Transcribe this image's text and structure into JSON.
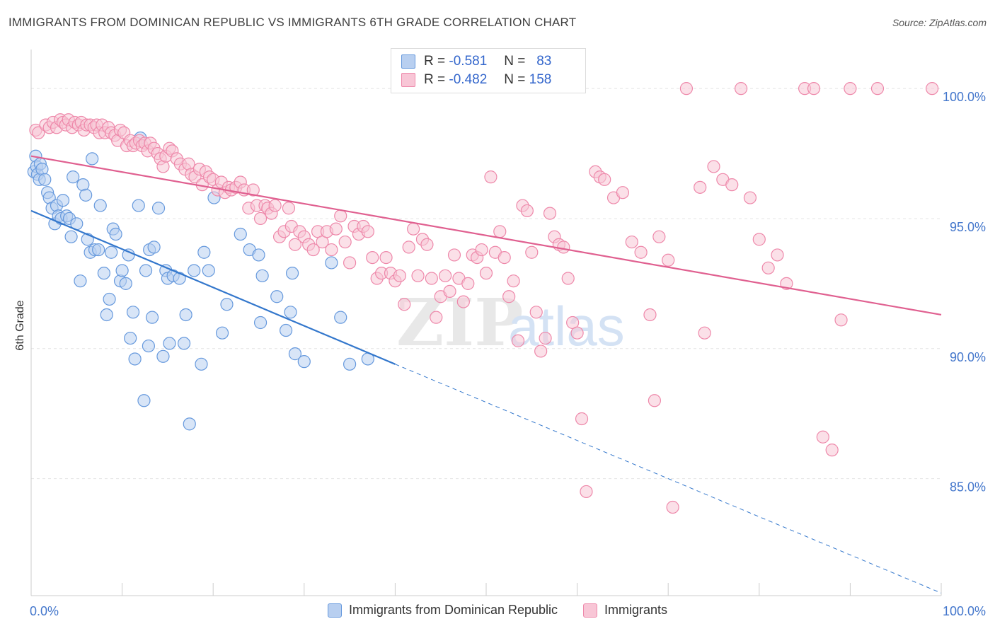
{
  "title": "IMMIGRANTS FROM DOMINICAN REPUBLIC VS IMMIGRANTS 6TH GRADE CORRELATION CHART",
  "source": "Source: ZipAtlas.com",
  "watermark": {
    "zip": "ZIP",
    "atlas": "atlas"
  },
  "legend_top": {
    "rows": [
      {
        "r_label": "R =",
        "r_value": "-0.581",
        "n_label": "N =",
        "n_value": "83"
      },
      {
        "r_label": "R =",
        "r_value": "-0.482",
        "n_label": "N =",
        "n_value": "158"
      }
    ]
  },
  "chart_data": {
    "type": "scatter",
    "ylabel": "6th Grade",
    "x_tick_labels": [
      "0.0%",
      "100.0%"
    ],
    "y_tick_labels": [
      "100.0%",
      "95.0%",
      "90.0%",
      "85.0%"
    ],
    "y_ticks": [
      100,
      95,
      90,
      85
    ],
    "xlim": [
      0,
      100
    ],
    "ylim": [
      80.5,
      101.5
    ],
    "grid": true,
    "legend_position": "bottom",
    "series": [
      {
        "name": "Immigrants from Dominican Republic",
        "color": "#6699dd",
        "fill": "#b8cff0",
        "trend": {
          "x0": 0,
          "y0": 95.3,
          "x1": 40,
          "y1": 89.4,
          "dash_to_x": 100,
          "dash_to_y": 80.6
        },
        "points": [
          [
            0.3,
            96.8
          ],
          [
            0.5,
            97.4
          ],
          [
            0.6,
            97.0
          ],
          [
            0.7,
            96.7
          ],
          [
            0.9,
            96.5
          ],
          [
            1.0,
            97.1
          ],
          [
            1.2,
            96.9
          ],
          [
            1.5,
            96.5
          ],
          [
            1.8,
            96.0
          ],
          [
            2.0,
            95.8
          ],
          [
            2.3,
            95.4
          ],
          [
            2.6,
            94.8
          ],
          [
            2.8,
            95.5
          ],
          [
            3.0,
            95.1
          ],
          [
            3.3,
            95.0
          ],
          [
            3.5,
            95.7
          ],
          [
            3.9,
            95.1
          ],
          [
            4.2,
            95.0
          ],
          [
            4.4,
            94.3
          ],
          [
            4.6,
            96.6
          ],
          [
            5.0,
            94.8
          ],
          [
            5.4,
            92.6
          ],
          [
            5.7,
            96.3
          ],
          [
            6.0,
            95.9
          ],
          [
            6.2,
            94.2
          ],
          [
            6.5,
            93.7
          ],
          [
            6.7,
            97.3
          ],
          [
            7.0,
            93.8
          ],
          [
            7.4,
            93.8
          ],
          [
            7.6,
            95.5
          ],
          [
            8.0,
            92.9
          ],
          [
            8.3,
            91.3
          ],
          [
            8.6,
            91.9
          ],
          [
            8.8,
            93.7
          ],
          [
            9.0,
            94.6
          ],
          [
            9.3,
            94.4
          ],
          [
            9.8,
            92.6
          ],
          [
            10.0,
            93.0
          ],
          [
            10.4,
            92.5
          ],
          [
            10.7,
            93.6
          ],
          [
            10.9,
            90.4
          ],
          [
            11.2,
            91.4
          ],
          [
            11.4,
            89.6
          ],
          [
            11.8,
            95.5
          ],
          [
            12.0,
            98.1
          ],
          [
            12.4,
            88.0
          ],
          [
            12.6,
            93.0
          ],
          [
            12.9,
            90.1
          ],
          [
            13.0,
            93.8
          ],
          [
            13.3,
            91.2
          ],
          [
            13.5,
            93.9
          ],
          [
            14.0,
            95.4
          ],
          [
            14.5,
            89.7
          ],
          [
            14.8,
            93.0
          ],
          [
            15.0,
            92.7
          ],
          [
            15.2,
            90.2
          ],
          [
            15.6,
            92.8
          ],
          [
            16.3,
            92.7
          ],
          [
            16.8,
            90.2
          ],
          [
            17.0,
            91.3
          ],
          [
            17.4,
            87.1
          ],
          [
            17.9,
            93.0
          ],
          [
            18.7,
            89.4
          ],
          [
            19.0,
            93.7
          ],
          [
            19.5,
            93.0
          ],
          [
            20.1,
            95.8
          ],
          [
            21.0,
            90.6
          ],
          [
            21.5,
            91.7
          ],
          [
            23.0,
            94.4
          ],
          [
            24.0,
            93.8
          ],
          [
            25.0,
            93.6
          ],
          [
            25.2,
            91.0
          ],
          [
            25.4,
            92.8
          ],
          [
            27.0,
            92.0
          ],
          [
            28.0,
            90.7
          ],
          [
            28.5,
            91.4
          ],
          [
            28.7,
            92.9
          ],
          [
            29.0,
            89.8
          ],
          [
            30.0,
            89.5
          ],
          [
            33.0,
            93.3
          ],
          [
            34.0,
            91.2
          ],
          [
            35.0,
            89.4
          ],
          [
            37.0,
            89.6
          ]
        ]
      },
      {
        "name": "Immigrants",
        "color": "#ee88aa",
        "fill": "#f8c6d6",
        "trend": {
          "x0": 0,
          "y0": 97.4,
          "x1": 100,
          "y1": 91.3
        },
        "points": [
          [
            0.5,
            98.4
          ],
          [
            0.8,
            98.3
          ],
          [
            1.6,
            98.6
          ],
          [
            2.0,
            98.5
          ],
          [
            2.4,
            98.7
          ],
          [
            2.8,
            98.5
          ],
          [
            3.2,
            98.8
          ],
          [
            3.5,
            98.7
          ],
          [
            3.8,
            98.6
          ],
          [
            4.1,
            98.8
          ],
          [
            4.5,
            98.5
          ],
          [
            4.8,
            98.7
          ],
          [
            5.2,
            98.6
          ],
          [
            5.5,
            98.7
          ],
          [
            5.8,
            98.4
          ],
          [
            6.1,
            98.6
          ],
          [
            6.5,
            98.6
          ],
          [
            6.9,
            98.5
          ],
          [
            7.2,
            98.6
          ],
          [
            7.5,
            98.3
          ],
          [
            7.8,
            98.6
          ],
          [
            8.1,
            98.3
          ],
          [
            8.5,
            98.5
          ],
          [
            8.8,
            98.3
          ],
          [
            9.2,
            98.2
          ],
          [
            9.5,
            98.0
          ],
          [
            9.8,
            98.4
          ],
          [
            10.2,
            98.3
          ],
          [
            10.5,
            97.8
          ],
          [
            10.9,
            98.0
          ],
          [
            11.2,
            97.8
          ],
          [
            11.5,
            97.9
          ],
          [
            11.9,
            98.0
          ],
          [
            12.2,
            97.8
          ],
          [
            12.5,
            97.9
          ],
          [
            12.8,
            97.6
          ],
          [
            13.1,
            97.9
          ],
          [
            13.5,
            97.7
          ],
          [
            13.9,
            97.5
          ],
          [
            14.2,
            97.3
          ],
          [
            14.5,
            97.0
          ],
          [
            14.8,
            97.4
          ],
          [
            15.2,
            97.7
          ],
          [
            15.5,
            97.6
          ],
          [
            16.0,
            97.3
          ],
          [
            16.4,
            97.1
          ],
          [
            16.9,
            96.9
          ],
          [
            17.3,
            97.1
          ],
          [
            17.6,
            96.7
          ],
          [
            18.0,
            96.6
          ],
          [
            18.5,
            96.9
          ],
          [
            18.8,
            96.3
          ],
          [
            19.2,
            96.8
          ],
          [
            19.6,
            96.6
          ],
          [
            20.0,
            96.5
          ],
          [
            20.5,
            96.1
          ],
          [
            20.9,
            96.4
          ],
          [
            21.3,
            96.0
          ],
          [
            21.7,
            96.2
          ],
          [
            22.0,
            96.1
          ],
          [
            22.5,
            96.2
          ],
          [
            23.0,
            96.4
          ],
          [
            23.4,
            96.1
          ],
          [
            23.9,
            95.4
          ],
          [
            24.4,
            96.1
          ],
          [
            24.8,
            95.5
          ],
          [
            25.2,
            95.0
          ],
          [
            25.7,
            95.5
          ],
          [
            26.0,
            95.4
          ],
          [
            26.4,
            95.2
          ],
          [
            26.8,
            95.5
          ],
          [
            27.3,
            94.3
          ],
          [
            27.8,
            94.5
          ],
          [
            28.3,
            95.4
          ],
          [
            28.6,
            94.7
          ],
          [
            29.0,
            94.0
          ],
          [
            29.5,
            94.5
          ],
          [
            30.0,
            94.3
          ],
          [
            30.5,
            94.0
          ],
          [
            31.0,
            93.8
          ],
          [
            31.5,
            94.5
          ],
          [
            32.0,
            94.1
          ],
          [
            32.5,
            94.5
          ],
          [
            33.0,
            93.8
          ],
          [
            33.5,
            94.6
          ],
          [
            34.0,
            95.1
          ],
          [
            34.5,
            94.1
          ],
          [
            35.0,
            93.3
          ],
          [
            35.5,
            94.7
          ],
          [
            36.0,
            94.4
          ],
          [
            36.5,
            94.7
          ],
          [
            37.0,
            94.5
          ],
          [
            37.5,
            93.5
          ],
          [
            38.0,
            92.7
          ],
          [
            38.5,
            92.9
          ],
          [
            39.0,
            93.5
          ],
          [
            39.5,
            92.9
          ],
          [
            40.0,
            92.6
          ],
          [
            40.5,
            92.8
          ],
          [
            41.0,
            91.7
          ],
          [
            41.5,
            93.9
          ],
          [
            42.0,
            94.6
          ],
          [
            42.5,
            92.8
          ],
          [
            43.0,
            94.2
          ],
          [
            43.5,
            94.0
          ],
          [
            44.0,
            92.7
          ],
          [
            44.5,
            91.2
          ],
          [
            45.0,
            92.0
          ],
          [
            45.5,
            92.8
          ],
          [
            46.0,
            92.2
          ],
          [
            46.5,
            93.6
          ],
          [
            47.0,
            92.7
          ],
          [
            47.5,
            91.8
          ],
          [
            48.0,
            92.5
          ],
          [
            48.5,
            93.6
          ],
          [
            49.0,
            93.5
          ],
          [
            49.5,
            93.8
          ],
          [
            50.0,
            92.9
          ],
          [
            50.5,
            96.6
          ],
          [
            51.0,
            93.7
          ],
          [
            51.5,
            94.5
          ],
          [
            52.0,
            93.5
          ],
          [
            52.5,
            92.0
          ],
          [
            53.0,
            92.6
          ],
          [
            53.5,
            90.3
          ],
          [
            54.0,
            95.5
          ],
          [
            54.5,
            95.3
          ],
          [
            55.0,
            93.7
          ],
          [
            55.5,
            91.4
          ],
          [
            56.0,
            89.9
          ],
          [
            56.5,
            90.4
          ],
          [
            57.0,
            95.2
          ],
          [
            57.5,
            94.3
          ],
          [
            58.0,
            94.0
          ],
          [
            58.5,
            93.9
          ],
          [
            59.0,
            92.7
          ],
          [
            59.5,
            91.0
          ],
          [
            60.0,
            90.6
          ],
          [
            60.5,
            87.3
          ],
          [
            61.0,
            84.5
          ],
          [
            62.0,
            96.8
          ],
          [
            62.5,
            96.6
          ],
          [
            63.0,
            96.5
          ],
          [
            64.0,
            95.8
          ],
          [
            65.0,
            96.0
          ],
          [
            66.0,
            94.1
          ],
          [
            67.0,
            93.7
          ],
          [
            68.0,
            91.3
          ],
          [
            68.5,
            88.0
          ],
          [
            69.0,
            94.3
          ],
          [
            70.0,
            93.4
          ],
          [
            70.5,
            83.9
          ],
          [
            72.0,
            100.0
          ],
          [
            73.5,
            96.2
          ],
          [
            74.0,
            90.6
          ],
          [
            75.0,
            97.0
          ],
          [
            76.0,
            96.5
          ],
          [
            77.0,
            96.3
          ],
          [
            78.0,
            100.0
          ],
          [
            79.0,
            95.8
          ],
          [
            80.0,
            94.2
          ],
          [
            81.0,
            93.1
          ],
          [
            82.0,
            93.6
          ],
          [
            83.0,
            92.5
          ],
          [
            85.0,
            100.0
          ],
          [
            86.0,
            100.0
          ],
          [
            87.0,
            86.6
          ],
          [
            88.0,
            86.1
          ],
          [
            89.0,
            91.1
          ],
          [
            90.0,
            100.0
          ],
          [
            93.0,
            100.0
          ],
          [
            99.0,
            100.0
          ]
        ]
      }
    ]
  },
  "bottom_legend": [
    "Immigrants from Dominican Republic",
    "Immigrants"
  ]
}
